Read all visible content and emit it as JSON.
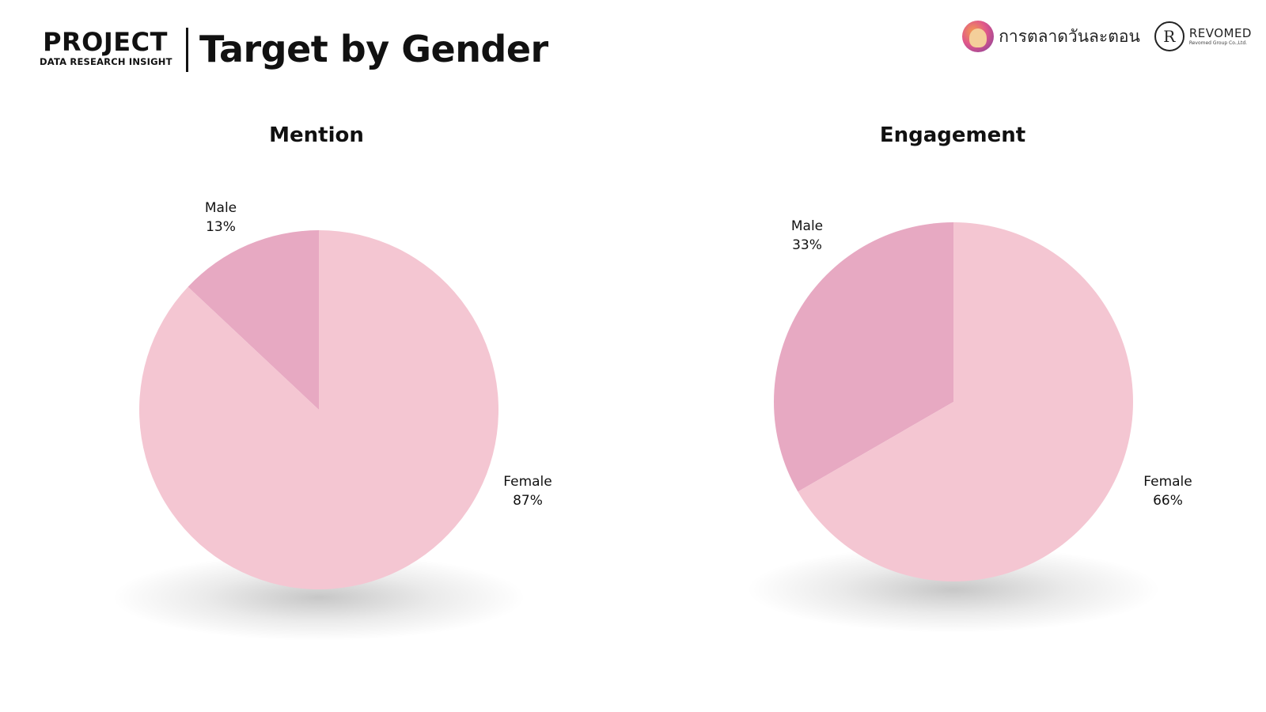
{
  "header": {
    "brand_main": "PROJECT",
    "brand_sub": "DATA RESEARCH INSIGHT",
    "title": "Target by Gender"
  },
  "logos": {
    "thai_brand": "การตลาดวันละตอน",
    "revomed": "REVOMED",
    "revomed_sub": "Revomed Group Co.,Ltd.",
    "revomed_mark": "R"
  },
  "colors": {
    "female": "#f4c6d2",
    "male": "#e7a9c2",
    "text": "#111111"
  },
  "chart_data": [
    {
      "type": "pie",
      "title": "Mention",
      "slices": [
        {
          "label": "Male",
          "value": 13,
          "display": "13%"
        },
        {
          "label": "Female",
          "value": 87,
          "display": "87%"
        }
      ]
    },
    {
      "type": "pie",
      "title": "Engagement",
      "slices": [
        {
          "label": "Male",
          "value": 33,
          "display": "33%"
        },
        {
          "label": "Female",
          "value": 66,
          "display": "66%"
        }
      ]
    }
  ]
}
